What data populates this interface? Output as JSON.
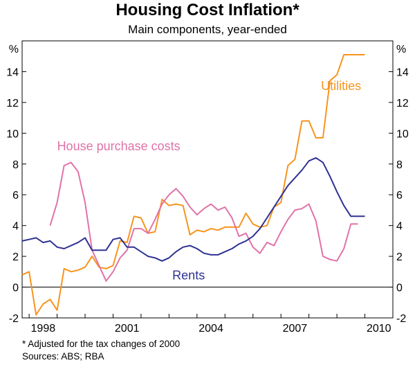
{
  "chart_data": {
    "type": "line",
    "title": "Housing Cost Inflation*",
    "subtitle": "Main components, year-ended",
    "y_unit": "%",
    "ylim": [
      -2,
      16
    ],
    "y_ticks": [
      -2,
      0,
      2,
      4,
      6,
      8,
      10,
      12,
      14
    ],
    "xlim": [
      1997.75,
      2011.0
    ],
    "x_ticks": [
      1998,
      2001,
      2004,
      2007,
      2010
    ],
    "x_tick_labels": [
      "1998",
      "2001",
      "2004",
      "2007",
      "2010"
    ],
    "grid": false,
    "series": [
      {
        "name": "Utilities",
        "color": "#f7941d",
        "x": [
          1997.75,
          1998.0,
          1998.25,
          1998.5,
          1998.75,
          1999.0,
          1999.25,
          1999.5,
          1999.75,
          2000.0,
          2000.25,
          2000.5,
          2000.75,
          2001.0,
          2001.25,
          2001.5,
          2001.75,
          2002.0,
          2002.25,
          2002.5,
          2002.75,
          2003.0,
          2003.25,
          2003.5,
          2003.75,
          2004.0,
          2004.25,
          2004.5,
          2004.75,
          2005.0,
          2005.25,
          2005.5,
          2005.75,
          2006.0,
          2006.25,
          2006.5,
          2006.75,
          2007.0,
          2007.25,
          2007.5,
          2007.75,
          2008.0,
          2008.25,
          2008.5,
          2008.75,
          2009.0,
          2009.25,
          2009.5,
          2009.75,
          2010.0
        ],
        "values": [
          0.8,
          1.0,
          -1.8,
          -1.1,
          -0.8,
          -1.5,
          1.2,
          1.0,
          1.1,
          1.3,
          2.0,
          1.3,
          1.2,
          1.4,
          3.0,
          2.9,
          4.6,
          4.5,
          3.5,
          3.6,
          5.7,
          5.3,
          5.4,
          5.3,
          3.4,
          3.7,
          3.6,
          3.8,
          3.7,
          3.9,
          3.9,
          3.9,
          4.8,
          4.1,
          3.9,
          4.0,
          5.2,
          5.5,
          7.9,
          8.3,
          10.8,
          10.8,
          9.7,
          9.7,
          13.4,
          13.8,
          15.1,
          15.1,
          15.1,
          15.1
        ]
      },
      {
        "name": "House purchase costs",
        "color": "#e072a8",
        "x": [
          1998.75,
          1999.0,
          1999.25,
          1999.5,
          1999.75,
          2000.0,
          2000.25,
          2000.5,
          2000.75,
          2001.0,
          2001.25,
          2001.5,
          2001.75,
          2002.0,
          2002.25,
          2002.5,
          2002.75,
          2003.0,
          2003.25,
          2003.5,
          2003.75,
          2004.0,
          2004.25,
          2004.5,
          2004.75,
          2005.0,
          2005.25,
          2005.5,
          2005.75,
          2006.0,
          2006.25,
          2006.5,
          2006.75,
          2007.0,
          2007.25,
          2007.5,
          2007.75,
          2008.0,
          2008.25,
          2008.5,
          2008.75,
          2009.0,
          2009.25,
          2009.5,
          2009.75
        ],
        "values": [
          4.0,
          5.5,
          7.9,
          8.1,
          7.5,
          5.5,
          2.4,
          1.4,
          0.4,
          1.0,
          1.9,
          2.4,
          3.8,
          3.8,
          3.5,
          4.4,
          5.4,
          6.0,
          6.4,
          5.9,
          5.2,
          4.7,
          5.1,
          5.4,
          5.0,
          5.2,
          4.5,
          3.3,
          3.5,
          2.6,
          2.2,
          2.9,
          2.7,
          3.6,
          4.4,
          5.0,
          5.1,
          5.4,
          4.3,
          2.0,
          1.8,
          1.7,
          2.5,
          4.1,
          4.1
        ]
      },
      {
        "name": "Rents",
        "color": "#2e3192",
        "x": [
          1997.75,
          1998.0,
          1998.25,
          1998.5,
          1998.75,
          1999.0,
          1999.25,
          1999.5,
          1999.75,
          2000.0,
          2000.25,
          2000.5,
          2000.75,
          2001.0,
          2001.25,
          2001.5,
          2001.75,
          2002.0,
          2002.25,
          2002.5,
          2002.75,
          2003.0,
          2003.25,
          2003.5,
          2003.75,
          2004.0,
          2004.25,
          2004.5,
          2004.75,
          2005.0,
          2005.25,
          2005.5,
          2005.75,
          2006.0,
          2006.25,
          2006.5,
          2006.75,
          2007.0,
          2007.25,
          2007.5,
          2007.75,
          2008.0,
          2008.25,
          2008.5,
          2008.75,
          2009.0,
          2009.25,
          2009.5,
          2009.75,
          2010.0
        ],
        "values": [
          3.0,
          3.1,
          3.2,
          2.9,
          3.0,
          2.6,
          2.5,
          2.7,
          2.9,
          3.2,
          2.4,
          2.4,
          2.4,
          3.1,
          3.2,
          2.6,
          2.6,
          2.3,
          2.0,
          1.9,
          1.7,
          1.9,
          2.3,
          2.6,
          2.7,
          2.5,
          2.2,
          2.1,
          2.1,
          2.3,
          2.5,
          2.8,
          3.0,
          3.3,
          3.8,
          4.5,
          5.2,
          5.9,
          6.6,
          7.1,
          7.6,
          8.2,
          8.4,
          8.1,
          7.2,
          6.2,
          5.3,
          4.6,
          4.6,
          4.6
        ]
      }
    ],
    "series_labels": [
      "Utilities",
      "House purchase costs",
      "Rents"
    ]
  },
  "footnotes": {
    "adjustment": "*   Adjusted for the tax changes of 2000",
    "sources": "Sources: ABS; RBA"
  },
  "colors": {
    "utilities": "#f7941d",
    "house_purchase": "#e072a8",
    "rents": "#2e3192"
  }
}
